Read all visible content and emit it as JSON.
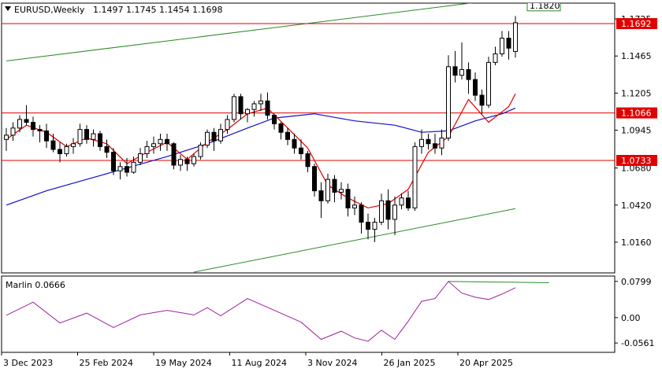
{
  "header": {
    "symbol": "EURUSD,Weekly",
    "ohlc": "1.1497 1.1745 1.1454 1.1698"
  },
  "indicator": {
    "label": "Marlin 0.0666",
    "ticks": [
      "0.0799",
      "0.00",
      "-0.0561"
    ],
    "color": "#a020a0"
  },
  "colors": {
    "bull": "#ffffff",
    "bear": "#000000",
    "ma_fast": "#e00000",
    "ma_slow": "#1010c8",
    "channel": "#2a8a2a",
    "level": "#e00000"
  },
  "chart_data": {
    "type": "candlestick",
    "x_labels": [
      "3 Dec 2023",
      "25 Feb 2024",
      "19 May 2024",
      "11 Aug 2024",
      "3 Nov 2024",
      "26 Jan 2025",
      "20 Apr 2025"
    ],
    "y_ticks": [
      "1.1725",
      "1.1465",
      "1.1205",
      "1.0945",
      "1.0680",
      "1.0420",
      "1.0160"
    ],
    "y_range": [
      0.995,
      1.183
    ],
    "levels": [
      {
        "label": "1.1692",
        "value": 1.1692
      },
      {
        "label": "1.1066",
        "value": 1.1066
      },
      {
        "label": "1.0733",
        "value": 1.0733
      }
    ],
    "channel_label": "1.1820",
    "channel_lines": [
      {
        "x0": 0,
        "y0": 1.143,
        "x1": 76,
        "y1": 1.1875
      },
      {
        "x0": 28,
        "y0": 0.995,
        "x1": 76,
        "y1": 1.0395
      }
    ],
    "ohlc": [
      [
        1.088,
        1.096,
        1.08,
        1.091
      ],
      [
        1.091,
        1.1,
        1.087,
        1.096
      ],
      [
        1.096,
        1.105,
        1.093,
        1.102
      ],
      [
        1.102,
        1.112,
        1.098,
        1.1
      ],
      [
        1.1,
        1.104,
        1.09,
        1.095
      ],
      [
        1.095,
        1.098,
        1.086,
        1.094
      ],
      [
        1.094,
        1.099,
        1.082,
        1.087
      ],
      [
        1.087,
        1.092,
        1.079,
        1.081
      ],
      [
        1.081,
        1.086,
        1.072,
        1.078
      ],
      [
        1.078,
        1.085,
        1.076,
        1.083
      ],
      [
        1.083,
        1.089,
        1.078,
        1.085
      ],
      [
        1.085,
        1.099,
        1.083,
        1.095
      ],
      [
        1.095,
        1.098,
        1.085,
        1.088
      ],
      [
        1.088,
        1.095,
        1.083,
        1.092
      ],
      [
        1.092,
        1.094,
        1.08,
        1.083
      ],
      [
        1.083,
        1.088,
        1.075,
        1.079
      ],
      [
        1.079,
        1.082,
        1.063,
        1.066
      ],
      [
        1.066,
        1.072,
        1.06,
        1.069
      ],
      [
        1.069,
        1.075,
        1.062,
        1.065
      ],
      [
        1.065,
        1.076,
        1.064,
        1.072
      ],
      [
        1.072,
        1.082,
        1.07,
        1.078
      ],
      [
        1.078,
        1.087,
        1.075,
        1.083
      ],
      [
        1.083,
        1.09,
        1.078,
        1.085
      ],
      [
        1.085,
        1.092,
        1.08,
        1.088
      ],
      [
        1.088,
        1.092,
        1.08,
        1.085
      ],
      [
        1.085,
        1.086,
        1.067,
        1.07
      ],
      [
        1.07,
        1.077,
        1.066,
        1.074
      ],
      [
        1.074,
        1.076,
        1.066,
        1.071
      ],
      [
        1.071,
        1.078,
        1.069,
        1.076
      ],
      [
        1.076,
        1.086,
        1.074,
        1.084
      ],
      [
        1.084,
        1.095,
        1.082,
        1.093
      ],
      [
        1.093,
        1.096,
        1.08,
        1.087
      ],
      [
        1.087,
        1.099,
        1.085,
        1.095
      ],
      [
        1.095,
        1.105,
        1.092,
        1.102
      ],
      [
        1.102,
        1.12,
        1.1,
        1.118
      ],
      [
        1.118,
        1.12,
        1.102,
        1.106
      ],
      [
        1.106,
        1.11,
        1.1,
        1.109
      ],
      [
        1.109,
        1.115,
        1.104,
        1.113
      ],
      [
        1.113,
        1.12,
        1.108,
        1.115
      ],
      [
        1.115,
        1.121,
        1.102,
        1.105
      ],
      [
        1.105,
        1.106,
        1.095,
        1.099
      ],
      [
        1.099,
        1.1,
        1.088,
        1.093
      ],
      [
        1.093,
        1.096,
        1.084,
        1.088
      ],
      [
        1.088,
        1.092,
        1.078,
        1.082
      ],
      [
        1.082,
        1.088,
        1.074,
        1.078
      ],
      [
        1.078,
        1.08,
        1.065,
        1.069
      ],
      [
        1.069,
        1.071,
        1.048,
        1.052
      ],
      [
        1.052,
        1.058,
        1.033,
        1.045
      ],
      [
        1.045,
        1.064,
        1.043,
        1.06
      ],
      [
        1.06,
        1.063,
        1.044,
        1.051
      ],
      [
        1.051,
        1.058,
        1.046,
        1.053
      ],
      [
        1.053,
        1.057,
        1.034,
        1.04
      ],
      [
        1.04,
        1.048,
        1.035,
        1.042
      ],
      [
        1.042,
        1.044,
        1.022,
        1.03
      ],
      [
        1.03,
        1.036,
        1.018,
        1.025
      ],
      [
        1.025,
        1.033,
        1.016,
        1.03
      ],
      [
        1.03,
        1.05,
        1.028,
        1.045
      ],
      [
        1.045,
        1.053,
        1.025,
        1.032
      ],
      [
        1.032,
        1.048,
        1.021,
        1.042
      ],
      [
        1.042,
        1.05,
        1.039,
        1.047
      ],
      [
        1.047,
        1.052,
        1.038,
        1.04
      ],
      [
        1.04,
        1.086,
        1.038,
        1.083
      ],
      [
        1.083,
        1.095,
        1.078,
        1.088
      ],
      [
        1.088,
        1.092,
        1.081,
        1.085
      ],
      [
        1.085,
        1.092,
        1.078,
        1.082
      ],
      [
        1.082,
        1.095,
        1.077,
        1.089
      ],
      [
        1.089,
        1.147,
        1.087,
        1.139
      ],
      [
        1.139,
        1.15,
        1.128,
        1.133
      ],
      [
        1.133,
        1.156,
        1.13,
        1.137
      ],
      [
        1.137,
        1.142,
        1.12,
        1.13
      ],
      [
        1.13,
        1.135,
        1.115,
        1.119
      ],
      [
        1.119,
        1.123,
        1.106,
        1.112
      ],
      [
        1.112,
        1.146,
        1.11,
        1.142
      ],
      [
        1.142,
        1.153,
        1.14,
        1.148
      ],
      [
        1.148,
        1.164,
        1.146,
        1.159
      ],
      [
        1.159,
        1.164,
        1.144,
        1.152
      ],
      [
        1.1497,
        1.1745,
        1.1454,
        1.1698
      ]
    ],
    "ma_slow": [
      [
        0,
        1.042
      ],
      [
        6,
        1.052
      ],
      [
        12,
        1.06
      ],
      [
        18,
        1.068
      ],
      [
        24,
        1.076
      ],
      [
        30,
        1.085
      ],
      [
        36,
        1.096
      ],
      [
        40,
        1.103
      ],
      [
        46,
        1.106
      ],
      [
        52,
        1.101
      ],
      [
        58,
        1.098
      ],
      [
        62,
        1.093
      ],
      [
        66,
        1.094
      ],
      [
        70,
        1.101
      ],
      [
        74,
        1.106
      ],
      [
        76,
        1.11
      ]
    ],
    "ma_fast": [
      [
        0,
        1.088
      ],
      [
        3,
        1.098
      ],
      [
        6,
        1.093
      ],
      [
        9,
        1.083
      ],
      [
        12,
        1.089
      ],
      [
        15,
        1.085
      ],
      [
        18,
        1.071
      ],
      [
        21,
        1.079
      ],
      [
        24,
        1.086
      ],
      [
        27,
        1.074
      ],
      [
        30,
        1.086
      ],
      [
        33,
        1.095
      ],
      [
        36,
        1.106
      ],
      [
        39,
        1.11
      ],
      [
        42,
        1.096
      ],
      [
        45,
        1.082
      ],
      [
        48,
        1.056
      ],
      [
        51,
        1.047
      ],
      [
        54,
        1.04
      ],
      [
        57,
        1.043
      ],
      [
        60,
        1.053
      ],
      [
        63,
        1.079
      ],
      [
        66,
        1.09
      ],
      [
        69,
        1.116
      ],
      [
        72,
        1.1
      ],
      [
        75,
        1.111
      ],
      [
        76,
        1.12
      ]
    ],
    "marlin": [
      [
        0,
        0.005
      ],
      [
        4,
        0.034
      ],
      [
        8,
        -0.012
      ],
      [
        12,
        0.01
      ],
      [
        16,
        -0.022
      ],
      [
        20,
        0.006
      ],
      [
        24,
        0.016
      ],
      [
        28,
        0.006
      ],
      [
        30,
        0.022
      ],
      [
        32,
        0.004
      ],
      [
        36,
        0.042
      ],
      [
        40,
        0.016
      ],
      [
        44,
        -0.01
      ],
      [
        47,
        -0.048
      ],
      [
        50,
        -0.03
      ],
      [
        52,
        -0.045
      ],
      [
        54,
        -0.052
      ],
      [
        56,
        -0.028
      ],
      [
        58,
        -0.048
      ],
      [
        60,
        -0.008
      ],
      [
        62,
        0.036
      ],
      [
        64,
        0.042
      ],
      [
        66,
        0.08
      ],
      [
        68,
        0.054
      ],
      [
        70,
        0.045
      ],
      [
        72,
        0.04
      ],
      [
        74,
        0.052
      ],
      [
        76,
        0.066
      ]
    ],
    "marlin_range": [
      -0.075,
      0.09
    ],
    "marlin_peak_line": {
      "x0": 66,
      "y0": 0.0799,
      "x1": 81,
      "y1": 0.077
    }
  }
}
